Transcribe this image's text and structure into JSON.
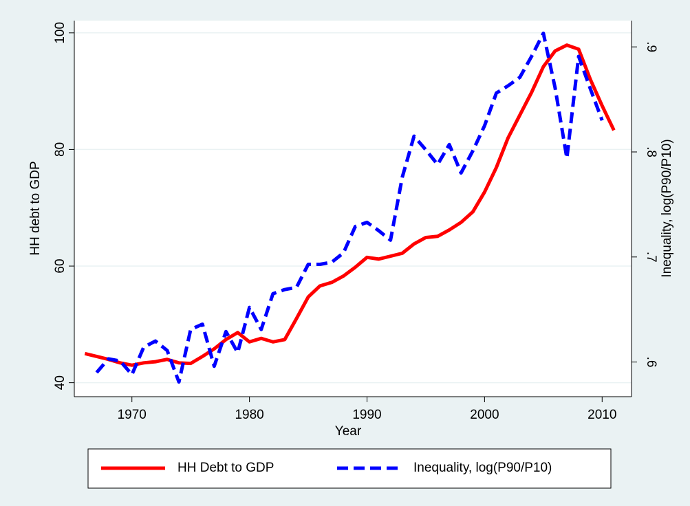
{
  "chart_data": {
    "type": "line",
    "xlabel": "Year",
    "ylabel": "HH debt to GDP",
    "y2label": "Inequality, log(P90/P10)",
    "x": [
      1966,
      1967,
      1968,
      1969,
      1970,
      1971,
      1972,
      1973,
      1974,
      1975,
      1976,
      1977,
      1978,
      1979,
      1980,
      1981,
      1982,
      1983,
      1984,
      1985,
      1986,
      1987,
      1988,
      1989,
      1990,
      1991,
      1992,
      1993,
      1994,
      1995,
      1996,
      1997,
      1998,
      1999,
      2000,
      2001,
      2002,
      2003,
      2004,
      2005,
      2006,
      2007,
      2008,
      2009,
      2010,
      2011
    ],
    "series": [
      {
        "name": "HH Debt to GDP",
        "color": "#ff0000",
        "dash": false,
        "values": [
          45.0,
          44.5,
          44.0,
          43.4,
          43.0,
          43.4,
          43.6,
          44.0,
          43.4,
          43.3,
          44.5,
          45.8,
          47.4,
          48.6,
          47.0,
          47.6,
          47.0,
          47.4,
          51.0,
          54.7,
          56.6,
          57.2,
          58.3,
          59.8,
          61.5,
          61.2,
          61.7,
          62.2,
          63.8,
          64.9,
          65.1,
          66.2,
          67.5,
          69.3,
          72.7,
          76.9,
          82.0,
          85.9,
          89.8,
          94.2,
          96.9,
          97.9,
          97.2,
          92.0,
          87.5,
          83.3
        ]
      },
      {
        "name": "Inequality, log(P90/P10)",
        "color": "#0000ff",
        "dash": true,
        "axis": "y2",
        "values": [
          null,
          0.59,
          0.603,
          0.601,
          0.588,
          0.614,
          0.62,
          0.611,
          0.581,
          0.631,
          0.636,
          0.596,
          0.629,
          0.609,
          0.652,
          0.631,
          0.665,
          0.669,
          0.671,
          0.693,
          0.693,
          0.695,
          0.704,
          0.729,
          0.733,
          0.725,
          0.716,
          0.776,
          0.815,
          0.802,
          0.788,
          0.807,
          0.78,
          0.801,
          0.825,
          0.856,
          0.863,
          0.871,
          0.891,
          0.913,
          0.861,
          0.794,
          0.891,
          0.86,
          0.83,
          null
        ]
      }
    ],
    "xlim": [
      1965.1,
      2012.5
    ],
    "xticks": [
      1970,
      1980,
      1990,
      2000,
      2010
    ],
    "ylim": [
      37.6,
      102.1
    ],
    "yticks": [
      40,
      60,
      80,
      100
    ],
    "y2lim": [
      0.567,
      0.925
    ],
    "y2ticks": [
      {
        "value": 0.6,
        "label": ".6"
      },
      {
        "value": 0.7,
        "label": ".7"
      },
      {
        "value": 0.8,
        "label": ".8"
      },
      {
        "value": 0.9,
        "label": ".9"
      }
    ],
    "grid": true,
    "legend": "bottom"
  }
}
